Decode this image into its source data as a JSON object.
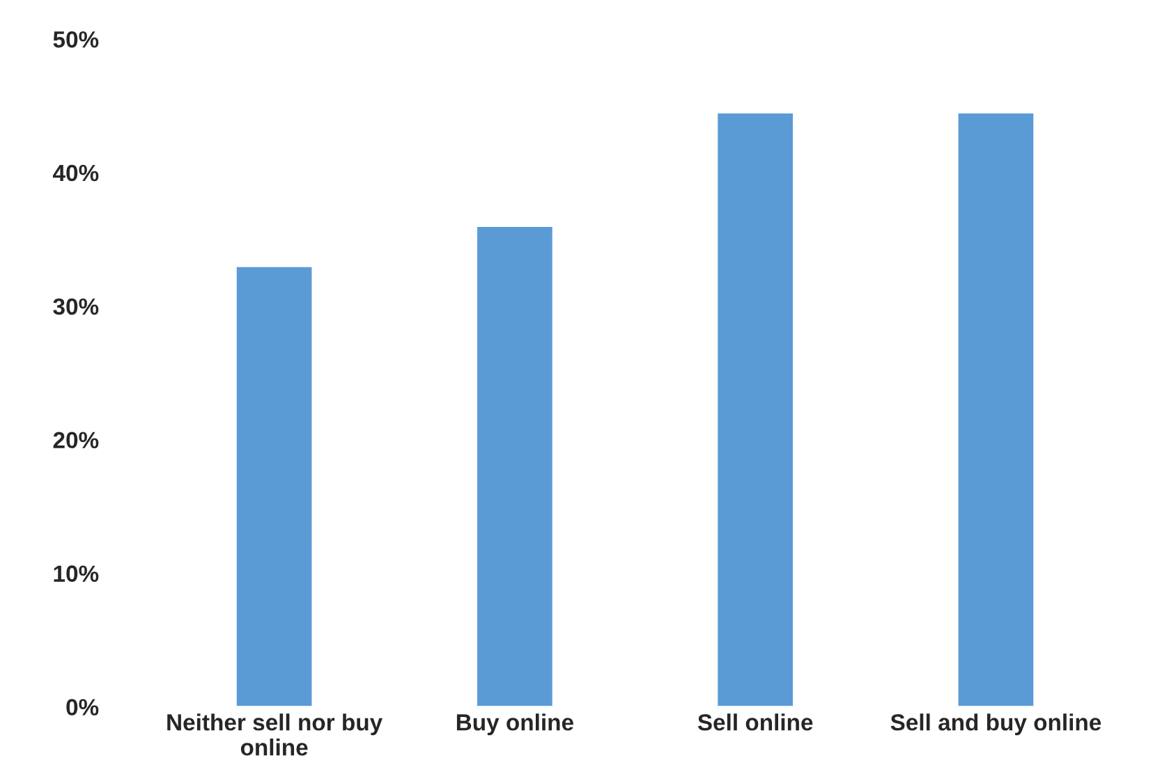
{
  "chart_data": {
    "type": "bar",
    "categories": [
      "Neither sell nor buy\nonline",
      "Buy online",
      "Sell online",
      "Sell and buy online"
    ],
    "values": [
      33,
      36,
      44.5,
      44.5
    ],
    "color": "#5b9bd5",
    "ylim": [
      0,
      50
    ],
    "yticks": [
      {
        "value": 0,
        "label": "0%"
      },
      {
        "value": 10,
        "label": "10%"
      },
      {
        "value": 20,
        "label": "20%"
      },
      {
        "value": 30,
        "label": "30%"
      },
      {
        "value": 40,
        "label": "40%"
      },
      {
        "value": 50,
        "label": "50%"
      }
    ],
    "grid": false,
    "legend": false
  }
}
